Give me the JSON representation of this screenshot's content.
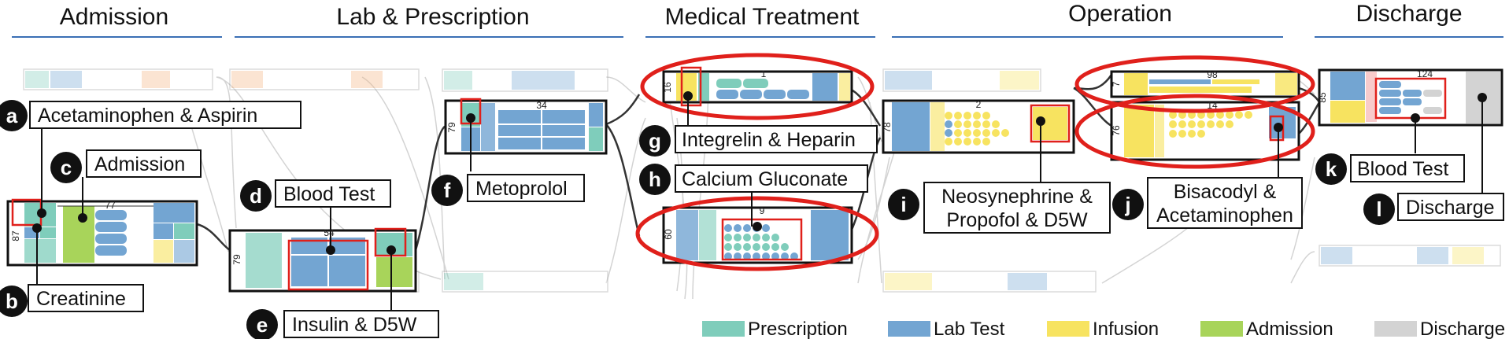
{
  "stages": [
    {
      "title": "Admission"
    },
    {
      "title": "Lab & Prescription"
    },
    {
      "title": "Medical Treatment"
    },
    {
      "title": "Operation"
    },
    {
      "title": "Discharge"
    }
  ],
  "colors": {
    "prescription": "#7fcdbb",
    "lab_test": "#73a5d2",
    "infusion": "#f7e360",
    "admission": "#a8d45a",
    "discharge": "#d3d3d3",
    "highlight": "#e0201b",
    "stage_rule": "#3a6fb5"
  },
  "callouts": [
    {
      "letter": "a",
      "label": "Acetaminophen & Aspirin"
    },
    {
      "letter": "b",
      "label": "Creatinine"
    },
    {
      "letter": "c",
      "label": "Admission"
    },
    {
      "letter": "d",
      "label": "Blood Test"
    },
    {
      "letter": "e",
      "label": "Insulin & D5W"
    },
    {
      "letter": "f",
      "label": "Metoprolol"
    },
    {
      "letter": "g",
      "label": "Integrelin & Heparin"
    },
    {
      "letter": "h",
      "label": "Calcium Gluconate"
    },
    {
      "letter": "i",
      "label": "Neosynephrine &",
      "label2": "Propofol & D5W"
    },
    {
      "letter": "j",
      "label": "Bisacodyl &",
      "label2": "Acetaminophen"
    },
    {
      "letter": "k",
      "label": "Blood Test"
    },
    {
      "letter": "l",
      "label": "Discharge"
    }
  ],
  "nodes": [
    {
      "count": "87",
      "top": "77"
    },
    {
      "count": "79",
      "top": "54"
    },
    {
      "count": "79",
      "top": "34"
    },
    {
      "count": "16",
      "top": "1"
    },
    {
      "count": "60",
      "top": "9"
    },
    {
      "count": "78",
      "top": "2"
    },
    {
      "count": "7",
      "top": "98"
    },
    {
      "count": "76",
      "top": "14"
    },
    {
      "count": "85",
      "top": "124"
    }
  ],
  "legend": [
    {
      "label": "Prescription",
      "color": "#7fcdbb"
    },
    {
      "label": "Lab Test",
      "color": "#73a5d2"
    },
    {
      "label": "Infusion",
      "color": "#f7e360"
    },
    {
      "label": "Admission",
      "color": "#a8d45a"
    },
    {
      "label": "Discharge",
      "color": "#d3d3d3"
    }
  ]
}
